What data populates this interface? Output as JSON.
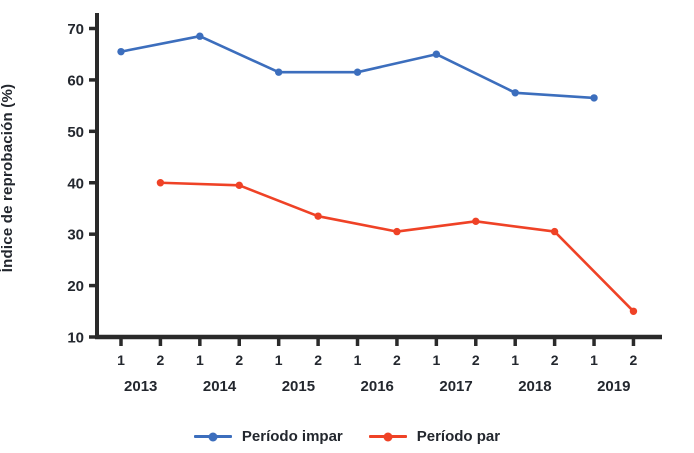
{
  "figure": {
    "background": "#ffffff",
    "text_color": "#23272e",
    "axis_color": "#2a2a2a"
  },
  "chart_data": {
    "type": "line",
    "title": "",
    "xlabel": "",
    "ylabel": "Índice de reprobación (%)",
    "ylim": [
      10,
      70
    ],
    "y_ticks": [
      70,
      60,
      50,
      40,
      30,
      20,
      10
    ],
    "grid": false,
    "legend_position": "bottom-center",
    "x_period_labels": [
      "1",
      "2",
      "1",
      "2",
      "1",
      "2",
      "1",
      "2",
      "1",
      "2",
      "1",
      "2",
      "1",
      "2"
    ],
    "year_labels": [
      "2013",
      "2014",
      "2015",
      "2016",
      "2017",
      "2018",
      "2019"
    ],
    "x_categories": [
      "2013-1",
      "2013-2",
      "2014-1",
      "2014-2",
      "2015-1",
      "2015-2",
      "2016-1",
      "2016-2",
      "2017-1",
      "2017-2",
      "2018-1",
      "2018-2",
      "2019-1",
      "2019-2"
    ],
    "series": [
      {
        "id": "impar",
        "name": "Período impar",
        "color": "#3c6ebd",
        "x": [
          1,
          3,
          5,
          7,
          9,
          11,
          13
        ],
        "values": [
          65.5,
          68.5,
          61.5,
          61.5,
          65.0,
          57.5,
          56.5
        ]
      },
      {
        "id": "par",
        "name": "Período par",
        "color": "#ef4226",
        "x": [
          2,
          4,
          6,
          8,
          10,
          12,
          14
        ],
        "values": [
          40.0,
          39.5,
          33.5,
          30.5,
          32.5,
          30.5,
          15.0
        ]
      }
    ]
  }
}
